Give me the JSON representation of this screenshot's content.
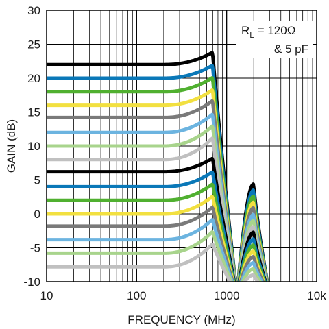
{
  "chart_data": {
    "type": "line",
    "xlabel": "FREQUENCY (MHz)",
    "ylabel": "GAIN (dB)",
    "xscale": "log",
    "xlim": [
      10,
      10000
    ],
    "ylim": [
      -10,
      30
    ],
    "x_ticks": [
      {
        "value": 10,
        "label": "10"
      },
      {
        "value": 100,
        "label": "100"
      },
      {
        "value": 1000,
        "label": "1000"
      },
      {
        "value": 10000,
        "label": "10k"
      }
    ],
    "y_ticks": [
      {
        "value": 30,
        "label": "30"
      },
      {
        "value": 25,
        "label": "25"
      },
      {
        "value": 20,
        "label": "20"
      },
      {
        "value": 15,
        "label": "15"
      },
      {
        "value": 10,
        "label": "10"
      },
      {
        "value": 5,
        "label": "5"
      },
      {
        "value": 0,
        "label": "0"
      },
      {
        "value": -5,
        "label": "-5"
      },
      {
        "value": -10,
        "label": "-10"
      }
    ],
    "grid": true,
    "annotation": {
      "main": "R",
      "sub": "L",
      "rest": " = 120Ω",
      "line2": "& 5 pF"
    },
    "series": [
      {
        "color": "#000000",
        "gain": 22,
        "peak": 1.8
      },
      {
        "color": "#0a78b8",
        "gain": 20,
        "peak": 1.9
      },
      {
        "color": "#50b030",
        "gain": 18,
        "peak": 2.1
      },
      {
        "color": "#f2e040",
        "gain": 16,
        "peak": 2.3
      },
      {
        "color": "#7a7a7a",
        "gain": 14.2,
        "peak": 2.5
      },
      {
        "color": "#6cb4e0",
        "gain": 12,
        "peak": 2.7
      },
      {
        "color": "#a8d48c",
        "gain": 10,
        "peak": 3.0
      },
      {
        "color": "#c0c0c0",
        "gain": 8,
        "peak": 3.2
      },
      {
        "color": "#000000",
        "gain": 6.2,
        "peak": 2.0
      },
      {
        "color": "#0a78b8",
        "gain": 4,
        "peak": 2.2
      },
      {
        "color": "#50b030",
        "gain": 2,
        "peak": 2.4
      },
      {
        "color": "#f2e040",
        "gain": 0,
        "peak": 2.6
      },
      {
        "color": "#7a7a7a",
        "gain": -1.8,
        "peak": 2.8
      },
      {
        "color": "#6cb4e0",
        "gain": -3.8,
        "peak": 3.0
      },
      {
        "color": "#a8d48c",
        "gain": -5.8,
        "peak": 3.2
      },
      {
        "color": "#c0c0c0",
        "gain": -7.8,
        "peak": 3.4
      }
    ],
    "rolloff": {
      "corner_mhz": 700,
      "null_mhz": 1300,
      "bump_mhz": 2000,
      "bump_db": 4.5,
      "end_mhz": 3000
    }
  }
}
